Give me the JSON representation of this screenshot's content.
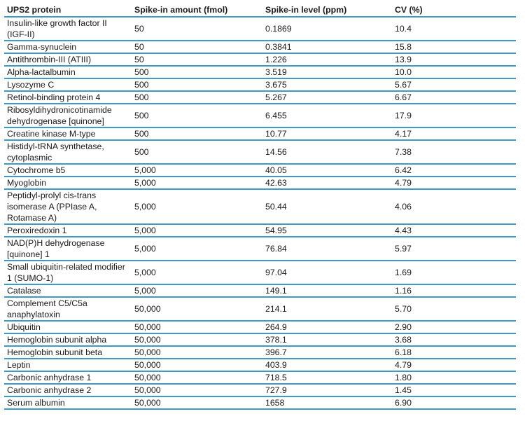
{
  "table": {
    "columns": [
      "UPS2 protein",
      "Spike-in amount (fmol)",
      "Spike-in level (ppm)",
      "CV (%)"
    ],
    "rows": [
      {
        "protein": "Insulin-like growth factor II (IGF-II)",
        "amount": "50",
        "level": "0.1869",
        "cv": "10.4"
      },
      {
        "protein": "Gamma-synuclein",
        "amount": "50",
        "level": "0.3841",
        "cv": "15.8"
      },
      {
        "protein": "Antithrombin-III (ATIII)",
        "amount": "50",
        "level": "1.226",
        "cv": "13.9"
      },
      {
        "protein": "Alpha-lactalbumin",
        "amount": "500",
        "level": "3.519",
        "cv": "10.0"
      },
      {
        "protein": "Lysozyme C",
        "amount": "500",
        "level": "3.675",
        "cv": "5.67"
      },
      {
        "protein": "Retinol-binding protein 4",
        "amount": "500",
        "level": "5.267",
        "cv": "6.67"
      },
      {
        "protein": "Ribosyldihydronicotinamide dehydrogenase [quinone]",
        "amount": "500",
        "level": "6.455",
        "cv": "17.9"
      },
      {
        "protein": "Creatine kinase M-type",
        "amount": "500",
        "level": "10.77",
        "cv": "4.17"
      },
      {
        "protein": "Histidyl-tRNA synthetase, cytoplasmic",
        "amount": "500",
        "level": "14.56",
        "cv": "7.38"
      },
      {
        "protein": "Cytochrome b5",
        "amount": "5,000",
        "level": "40.05",
        "cv": "6.42"
      },
      {
        "protein": "Myoglobin",
        "amount": "5,000",
        "level": "42.63",
        "cv": "4.79"
      },
      {
        "protein": "Peptidyl-prolyl cis-trans isomerase A (PPIase A, Rotamase A)",
        "amount": "5,000",
        "level": "50.44",
        "cv": "4.06"
      },
      {
        "protein": "Peroxiredoxin 1",
        "amount": "5,000",
        "level": "54.95",
        "cv": "4.43"
      },
      {
        "protein": "NAD(P)H dehydrogenase [quinone] 1",
        "amount": "5,000",
        "level": "76.84",
        "cv": "5.97"
      },
      {
        "protein": "Small ubiquitin-related modifier 1 (SUMO-1)",
        "amount": "5,000",
        "level": "97.04",
        "cv": "1.69"
      },
      {
        "protein": "Catalase",
        "amount": "5,000",
        "level": "149.1",
        "cv": "1.16"
      },
      {
        "protein": "Complement C5/C5a anaphylatoxin",
        "amount": "50,000",
        "level": "214.1",
        "cv": "5.70"
      },
      {
        "protein": "Ubiquitin",
        "amount": "50,000",
        "level": "264.9",
        "cv": "2.90"
      },
      {
        "protein": "Hemoglobin subunit alpha",
        "amount": "50,000",
        "level": "378.1",
        "cv": "3.68"
      },
      {
        "protein": "Hemoglobin subunit beta",
        "amount": "50,000",
        "level": "396.7",
        "cv": "6.18"
      },
      {
        "protein": "Leptin",
        "amount": "50,000",
        "level": "403.9",
        "cv": "4.79"
      },
      {
        "protein": "Carbonic anhydrase 1",
        "amount": "50,000",
        "level": "718.5",
        "cv": "1.80"
      },
      {
        "protein": "Carbonic anhydrase 2",
        "amount": "50,000",
        "level": "727.9",
        "cv": "1.45"
      },
      {
        "protein": "Serum albumin",
        "amount": "50,000",
        "level": "1658",
        "cv": "6.90"
      }
    ]
  },
  "colors": {
    "divider": "#3b9ac6",
    "text": "#1a1a1a"
  }
}
